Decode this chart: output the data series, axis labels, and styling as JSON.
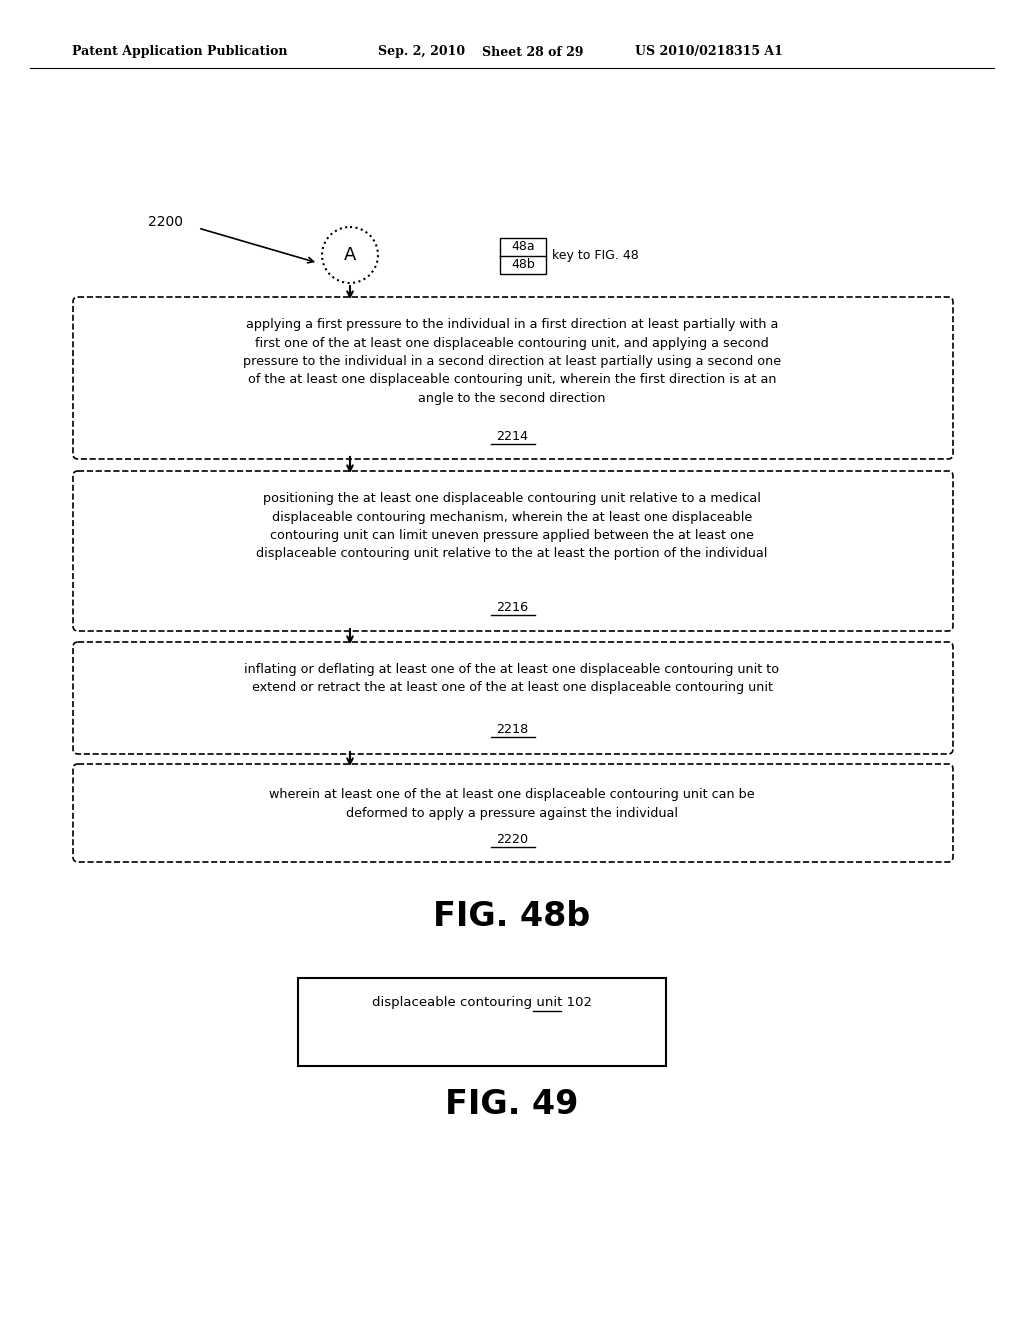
{
  "background_color": "#ffffff",
  "header_text": "Patent Application Publication",
  "header_date": "Sep. 2, 2010",
  "header_sheet": "Sheet 28 of 29",
  "header_patent": "US 2010/0218315 A1",
  "fig48b_label": "FIG. 48b",
  "fig49_label": "FIG. 49",
  "label_2200": "2200",
  "circle_label": "A",
  "key_label_top": "48a",
  "key_label_bottom": "48b",
  "key_text": "key to FIG. 48",
  "box1_text": "applying a first pressure to the individual in a first direction at least partially with a\nfirst one of the at least one displaceable contouring unit, and applying a second\npressure to the individual in a second direction at least partially using a second one\nof the at least one displaceable contouring unit, wherein the first direction is at an\nangle to the second direction",
  "box1_num": "2214",
  "box2_text": "positioning the at least one displaceable contouring unit relative to a medical\ndisplaceable contouring mechanism, wherein the at least one displaceable\ncontouring unit can limit uneven pressure applied between the at least one\ndisplaceable contouring unit relative to the at least the portion of the individual",
  "box2_num": "2216",
  "box3_text": "inflating or deflating at least one of the at least one displaceable contouring unit to\nextend or retract the at least one of the at least one displaceable contouring unit",
  "box3_num": "2218",
  "box4_text": "wherein at least one of the at least one displaceable contouring unit can be\ndeformed to apply a pressure against the individual",
  "box4_num": "2220",
  "fig49_box_text": "displaceable contouring unit ",
  "fig49_box_num": "102"
}
